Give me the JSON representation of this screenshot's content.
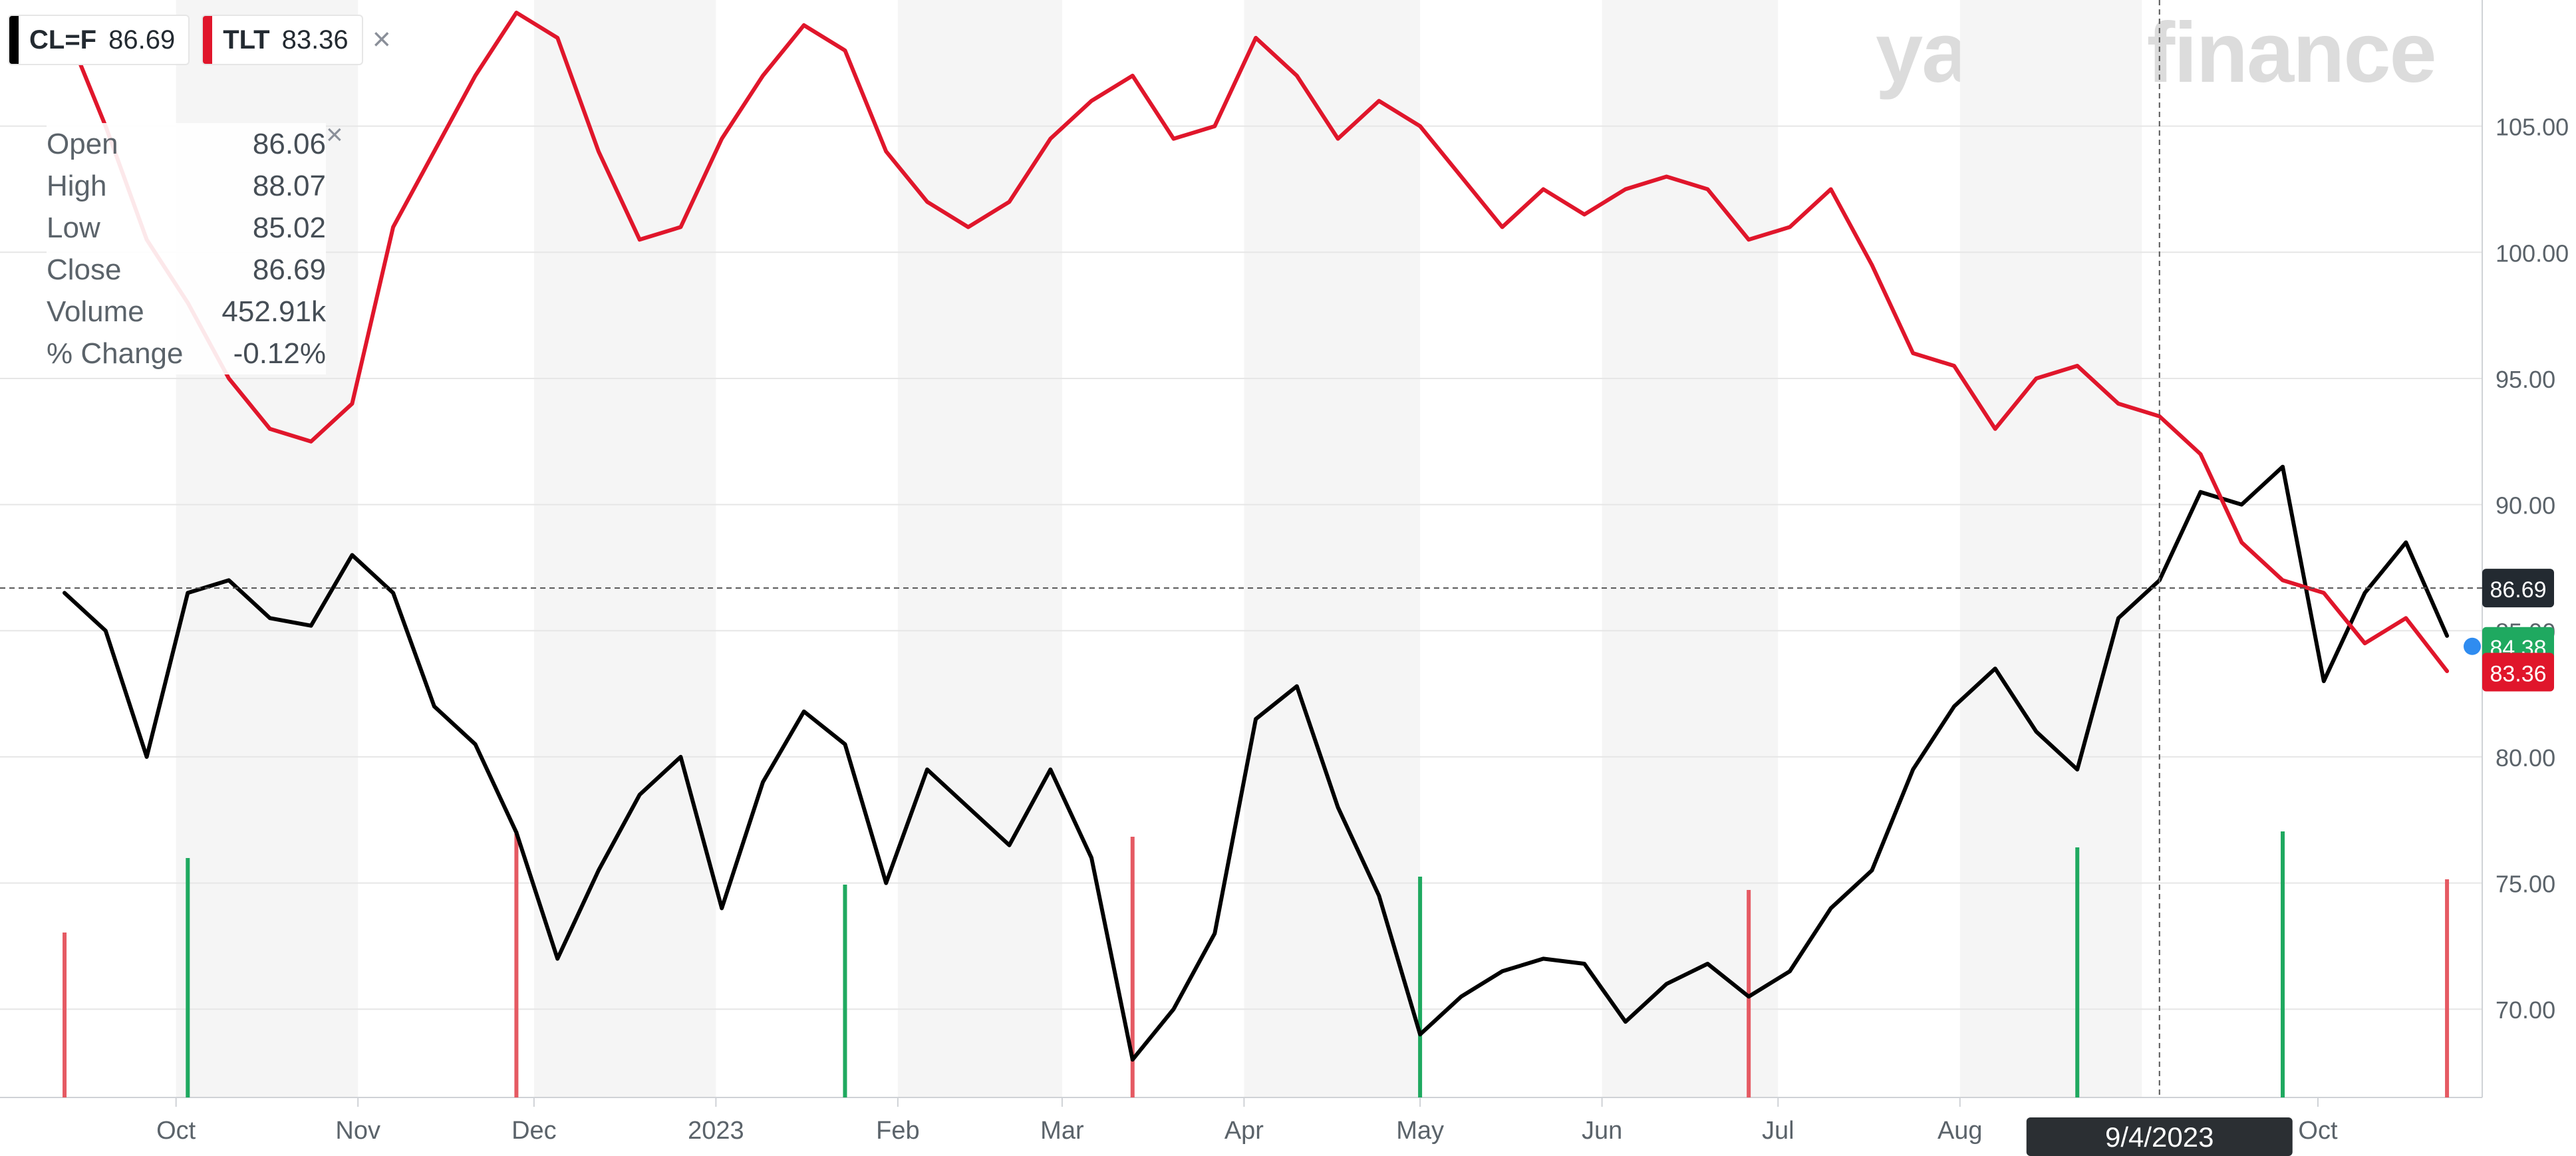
{
  "watermark": "yahoo!finance",
  "legend": [
    {
      "symbol": "CL=F",
      "value": "86.69",
      "color": "#000000"
    },
    {
      "symbol": "TLT",
      "value": "83.36",
      "color": "#e0162b"
    }
  ],
  "legend_close_icon": "×",
  "tooltip": {
    "close_icon": "×",
    "rows": [
      {
        "label": "Open",
        "value": "86.06"
      },
      {
        "label": "High",
        "value": "88.07"
      },
      {
        "label": "Low",
        "value": "85.02"
      },
      {
        "label": "Close",
        "value": "86.69"
      },
      {
        "label": "Volume",
        "value": "452.91k"
      },
      {
        "label": "% Change",
        "value": "-0.12%"
      }
    ]
  },
  "colors": {
    "cl": "#000000",
    "tlt": "#e0162b",
    "vol_up": "#1fa960",
    "vol_down": "#e55a63",
    "band": "#f5f5f5",
    "grid": "#e6e6e6",
    "axis_text": "#5b636a"
  },
  "chart_data": {
    "type": "line",
    "x": [
      "2022-09-12",
      "2022-09-19",
      "2022-09-26",
      "2022-10-03",
      "2022-10-10",
      "2022-10-17",
      "2022-10-24",
      "2022-10-31",
      "2022-11-07",
      "2022-11-14",
      "2022-11-21",
      "2022-11-28",
      "2022-12-05",
      "2022-12-12",
      "2022-12-19",
      "2022-12-26",
      "2023-01-02",
      "2023-01-09",
      "2023-01-16",
      "2023-01-23",
      "2023-01-30",
      "2023-02-06",
      "2023-02-13",
      "2023-02-20",
      "2023-02-27",
      "2023-03-06",
      "2023-03-13",
      "2023-03-20",
      "2023-03-27",
      "2023-04-03",
      "2023-04-10",
      "2023-04-17",
      "2023-04-24",
      "2023-05-01",
      "2023-05-08",
      "2023-05-15",
      "2023-05-22",
      "2023-05-29",
      "2023-06-05",
      "2023-06-12",
      "2023-06-19",
      "2023-06-26",
      "2023-07-03",
      "2023-07-10",
      "2023-07-17",
      "2023-07-24",
      "2023-07-31",
      "2023-08-07",
      "2023-08-14",
      "2023-08-21",
      "2023-08-28",
      "2023-09-04",
      "2023-09-11",
      "2023-09-18",
      "2023-09-25",
      "2023-10-02",
      "2023-10-09",
      "2023-10-16",
      "2023-10-23"
    ],
    "series": [
      {
        "name": "CL=F",
        "values": [
          86.5,
          85.0,
          80.0,
          86.5,
          87.0,
          85.5,
          85.2,
          88.0,
          86.5,
          82.0,
          80.5,
          77.0,
          72.0,
          75.5,
          78.5,
          80.0,
          74.0,
          79.0,
          81.8,
          80.5,
          75.0,
          79.5,
          78.0,
          76.5,
          79.5,
          76.0,
          68.0,
          70.0,
          73.0,
          81.5,
          82.8,
          78.0,
          74.5,
          69.0,
          70.5,
          71.5,
          72.0,
          71.8,
          69.5,
          71.0,
          71.8,
          70.5,
          71.5,
          74.0,
          75.5,
          79.5,
          82.0,
          83.5,
          81.0,
          79.5,
          85.5,
          87.0,
          90.5,
          90.0,
          91.5,
          83.0,
          86.5,
          88.5,
          84.8
        ]
      },
      {
        "name": "TLT",
        "values": [
          109.0,
          105.0,
          100.5,
          98.0,
          95.0,
          93.0,
          92.5,
          94.0,
          101.0,
          104.0,
          107.0,
          109.5,
          108.5,
          104.0,
          100.5,
          101.0,
          104.5,
          107.0,
          109.0,
          108.0,
          104.0,
          102.0,
          101.0,
          102.0,
          104.5,
          106.0,
          107.0,
          104.5,
          105.0,
          108.5,
          107.0,
          104.5,
          106.0,
          105.0,
          103.0,
          101.0,
          102.5,
          101.5,
          102.5,
          103.0,
          102.5,
          100.5,
          101.0,
          102.5,
          99.5,
          96.0,
          95.5,
          93.0,
          95.0,
          95.5,
          94.0,
          93.5,
          92.0,
          88.5,
          87.0,
          86.5,
          84.5,
          85.5,
          83.4
        ]
      }
    ],
    "volume": [
      {
        "x": "2022-09-12",
        "value": 0.62,
        "direction": "down"
      },
      {
        "x": "2022-10-03",
        "value": 0.9,
        "direction": "up"
      },
      {
        "x": "2022-11-28",
        "value": 1.0,
        "direction": "down"
      },
      {
        "x": "2023-01-23",
        "value": 0.8,
        "direction": "up"
      },
      {
        "x": "2023-03-13",
        "value": 0.98,
        "direction": "down"
      },
      {
        "x": "2023-05-01",
        "value": 0.83,
        "direction": "up"
      },
      {
        "x": "2023-06-26",
        "value": 0.78,
        "direction": "down"
      },
      {
        "x": "2023-08-21",
        "value": 0.94,
        "direction": "up"
      },
      {
        "x": "2023-09-25",
        "value": 1.0,
        "direction": "up"
      },
      {
        "x": "2023-10-23",
        "value": 0.82,
        "direction": "down"
      }
    ],
    "x_tick_labels": [
      "Oct",
      "Nov",
      "Dec",
      "2023",
      "Feb",
      "Mar",
      "Apr",
      "May",
      "Jun",
      "Jul",
      "Aug",
      "Sep",
      "Oct"
    ],
    "y_tick_labels": [
      "70.00",
      "75.00",
      "80.00",
      "85.00",
      "90.00",
      "95.00",
      "100.00",
      "105.00"
    ],
    "ylim": [
      66.5,
      110
    ],
    "grid": true,
    "crosshair": {
      "x_label": "9/4/2023",
      "price": "86.69"
    },
    "price_tags": [
      {
        "value": 86.69,
        "label": "86.69",
        "color": "#232a31"
      },
      {
        "value": 84.38,
        "label": "84.38",
        "color": "#1fa960"
      },
      {
        "value": 83.36,
        "label": "83.36",
        "color": "#e0162b"
      }
    ]
  }
}
